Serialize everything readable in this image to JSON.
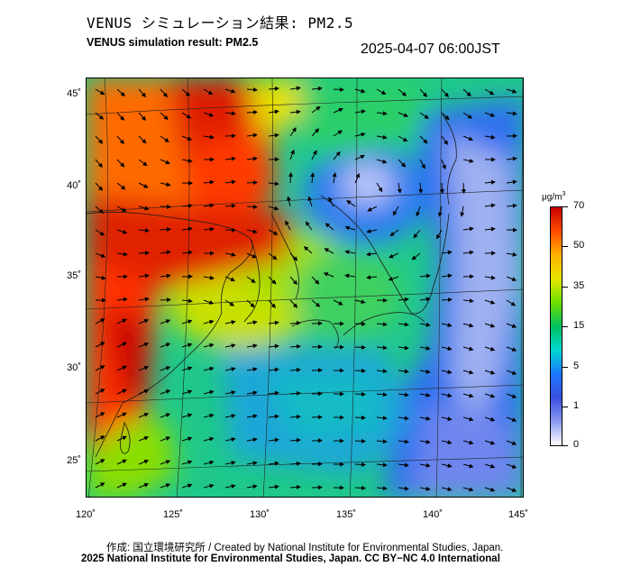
{
  "header": {
    "title_jp": "VENUS シミュレーション結果: PM2.5",
    "title_en": "VENUS simulation result: PM2.5",
    "timestamp": "2025-04-07 06:00JST"
  },
  "map": {
    "latitude_labels": [
      "45˚",
      "40˚",
      "35˚",
      "30˚",
      "25˚"
    ],
    "longitude_labels": [
      "120˚",
      "125˚",
      "130˚",
      "135˚",
      "140˚",
      "145˚"
    ]
  },
  "colorbar": {
    "unit_base": "μg/m",
    "unit_sup": "3",
    "labels": [
      "70",
      "50",
      "35",
      "15",
      "5",
      "1",
      "0"
    ],
    "colors": [
      "#c80000",
      "#ff4a00",
      "#ffb000",
      "#e6e600",
      "#6ee000",
      "#00c060",
      "#00d8d0",
      "#1a78ff",
      "#3a4ee0",
      "#8a9af0",
      "#ffffff"
    ]
  },
  "footer": {
    "credit": "作成: 国立環境研究所 / Created by National Institute for Environmental Studies, Japan.",
    "license": "2025 National Institute for Environmental Studies, Japan. CC BY−NC 4.0 International"
  }
}
